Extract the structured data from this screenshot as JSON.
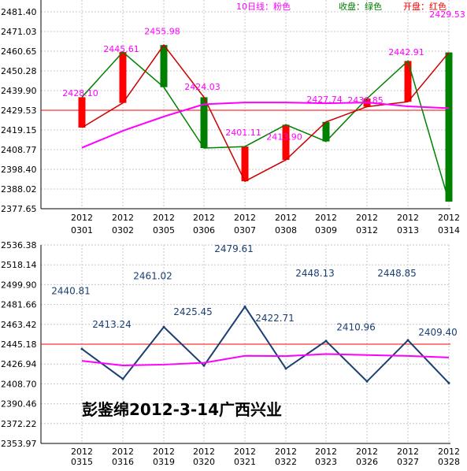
{
  "colors": {
    "up_candle": "#ff0000",
    "down_candle": "#008000",
    "close_line_down": "#008000",
    "open_line_red": "#cc0000",
    "ma10": "#ff00ff",
    "reference_line": "#ff0000",
    "top_value_labels": "#ff00ff",
    "bottom_line": "#1a3f73",
    "bottom_labels": "#1a3f73",
    "grid": "#c8c8c8",
    "axis_text": "#000000"
  },
  "chart_data": [
    {
      "type": "candlestick",
      "title": "",
      "legend": [
        {
          "text": "10日线：粉色",
          "color": "#ff00ff"
        },
        {
          "text": "收盘：绿色",
          "color": "#008000"
        },
        {
          "text": "开盘：红色",
          "color": "#ff0000"
        }
      ],
      "legend_placement": "top",
      "grid": true,
      "y_ticks": [
        "2481.40",
        "2471.03",
        "2460.65",
        "2450.28",
        "2439.90",
        "2429.53",
        "2419.15",
        "2408.77",
        "2398.40",
        "2388.02",
        "2377.65"
      ],
      "ylim": [
        2377.65,
        2481.4
      ],
      "categories": [
        {
          "year": "2012",
          "md": "0301"
        },
        {
          "year": "2012",
          "md": "0302"
        },
        {
          "year": "2012",
          "md": "0305"
        },
        {
          "year": "2012",
          "md": "0306"
        },
        {
          "year": "2012",
          "md": "0307"
        },
        {
          "year": "2012",
          "md": "0308"
        },
        {
          "year": "2012",
          "md": "0309"
        },
        {
          "year": "2012",
          "md": "0312"
        },
        {
          "year": "2012",
          "md": "0313"
        },
        {
          "year": "2012",
          "md": "0314"
        }
      ],
      "open": [
        2420.4,
        2433.4,
        2463.9,
        2436.4,
        2392.1,
        2403.4,
        2423.4,
        2431.4,
        2434.0,
        2460.0
      ],
      "close": [
        2436.4,
        2460.2,
        2441.7,
        2409.6,
        2410.4,
        2421.9,
        2413.1,
        2435.7,
        2455.5,
        2381.4
      ],
      "ma10": [
        2409.8,
        2418.7,
        2426.2,
        2432.7,
        2433.6,
        2433.6,
        2433.2,
        2433.6,
        2431.6,
        2430.6
      ],
      "value_labels": [
        "2428.10",
        "2445.61",
        "2455.98",
        "2424.03",
        "2401.11",
        "2413.90",
        "2427.74",
        "2430.85",
        "2442.91",
        "2429.53"
      ],
      "value_label_y": [
        2437.0,
        2460.3,
        2469.5,
        2440.3,
        2416.3,
        2413.9,
        2433.7,
        2433.2,
        2458.6,
        2478.4
      ],
      "reference_line": 2429.53
    },
    {
      "type": "line",
      "title": "",
      "annotation": "彭鉴绵2012-3-14广西兴业",
      "grid": true,
      "y_ticks": [
        "2536.38",
        "2518.14",
        "2499.90",
        "2481.66",
        "2463.42",
        "2445.18",
        "2426.94",
        "2408.70",
        "2390.46",
        "2372.22",
        "2353.97"
      ],
      "ylim": [
        2353.97,
        2536.38
      ],
      "categories": [
        {
          "year": "2012",
          "md": "0315"
        },
        {
          "year": "2012",
          "md": "0316"
        },
        {
          "year": "2012",
          "md": "0319"
        },
        {
          "year": "2012",
          "md": "0320"
        },
        {
          "year": "2012",
          "md": "0321"
        },
        {
          "year": "2012",
          "md": "0322"
        },
        {
          "year": "2012",
          "md": "0323"
        },
        {
          "year": "2012",
          "md": "0326"
        },
        {
          "year": "2012",
          "md": "0327"
        },
        {
          "year": "2012",
          "md": "0328"
        }
      ],
      "values": [
        2440.81,
        2413.24,
        2461.02,
        2425.45,
        2479.61,
        2422.71,
        2448.13,
        2410.96,
        2448.85,
        2409.4
      ],
      "ma": [
        2429.9,
        2425.6,
        2426.4,
        2428.1,
        2434.5,
        2434.2,
        2436.1,
        2435.2,
        2434.4,
        2433.0
      ],
      "value_labels": [
        "2440.81",
        "2413.24",
        "2461.02",
        "2425.45",
        "2479.61",
        "2422.71",
        "2448.13",
        "2410.96",
        "2448.85",
        "2409.40"
      ],
      "value_label_y": [
        2491.0,
        2460.5,
        2505.0,
        2472.0,
        2530.0,
        2466.0,
        2507.5,
        2458.0,
        2507.5,
        2453.0
      ],
      "reference_line": 2445.18
    }
  ]
}
